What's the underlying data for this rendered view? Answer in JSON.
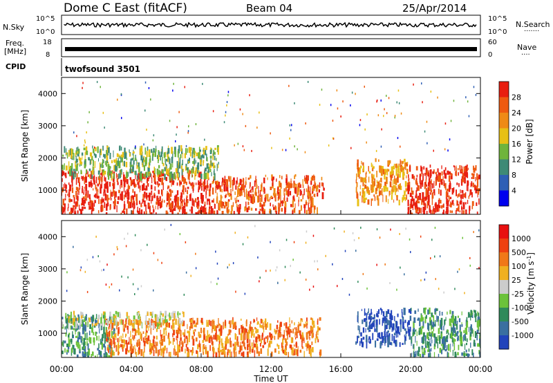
{
  "header": {
    "station": "Dome C East (fitACF)",
    "beam": "Beam 04",
    "date": "25/Apr/2014"
  },
  "noise_panel": {
    "left_label": "N.Sky",
    "left_ticks": [
      "10^5",
      "10^0"
    ],
    "right_label": "N.Search",
    "right_ticks": [
      "10^5",
      "10^0"
    ]
  },
  "freq_panel": {
    "left_label_1": "Freq.",
    "left_label_2": "[MHz]",
    "left_ticks": [
      "18",
      "8"
    ],
    "right_label": "Nave",
    "right_ticks": [
      "60",
      "0"
    ]
  },
  "cpid_panel": {
    "label": "CPID",
    "program": "twofsound 3501"
  },
  "chart_data": [
    {
      "type": "heatmap",
      "title": "",
      "ylabel": "Slant Range [km]",
      "ylim": [
        250,
        4500
      ],
      "yticks": [
        1000,
        2000,
        3000,
        4000
      ],
      "x_range_hours": [
        0,
        24
      ],
      "colorbar": {
        "label": "Power [dB]",
        "ticks": [
          "4",
          "8",
          "12",
          "16",
          "20",
          "24",
          "28"
        ],
        "colors": [
          "#0000ee",
          "#2e5fb5",
          "#3e8a76",
          "#6fb43c",
          "#e8c015",
          "#ef8a16",
          "#ee5a10",
          "#e81e10"
        ]
      },
      "echo_regions": [
        {
          "t0": 0.0,
          "t1": 8.6,
          "r0": 300,
          "r1": 1650,
          "level": 7
        },
        {
          "t0": 8.6,
          "t1": 15.0,
          "r0": 350,
          "r1": 1500,
          "level": 6
        },
        {
          "t0": 0.0,
          "t1": 9.0,
          "r0": 1500,
          "r1": 2400,
          "level": 3
        },
        {
          "t0": 16.8,
          "t1": 19.8,
          "r0": 700,
          "r1": 2000,
          "level": 5
        },
        {
          "t0": 19.8,
          "t1": 24.0,
          "r0": 300,
          "r1": 1800,
          "level": 7
        }
      ]
    },
    {
      "type": "heatmap",
      "title": "",
      "ylabel": "Slant Range [km]",
      "ylim": [
        250,
        4500
      ],
      "yticks": [
        1000,
        2000,
        3000,
        4000
      ],
      "x_range_hours": [
        0,
        24
      ],
      "xticks": [
        "00:00",
        "04:00",
        "08:00",
        "12:00",
        "16:00",
        "20:00",
        "00:00"
      ],
      "xlabel": "Time UT",
      "colorbar": {
        "label": "Velocity [m s^-1]",
        "ticks": [
          "1000",
          "500",
          "100",
          "25",
          "-25",
          "-100",
          "-500",
          "-1000"
        ],
        "colors": [
          "#2244bb",
          "#3a6fa0",
          "#2f8a5a",
          "#6cc23a",
          "#cccccc",
          "#f0b020",
          "#f07818",
          "#ee4010",
          "#e81010"
        ]
      },
      "echo_regions": [
        {
          "t0": 0.0,
          "t1": 3.0,
          "r0": 300,
          "r1": 1600,
          "level": 2
        },
        {
          "t0": 2.5,
          "t1": 14.8,
          "r0": 400,
          "r1": 1500,
          "level": 6
        },
        {
          "t0": 0.0,
          "t1": 7.0,
          "r0": 1300,
          "r1": 1700,
          "level": 4
        },
        {
          "t0": 16.8,
          "t1": 20.0,
          "r0": 700,
          "r1": 1800,
          "level": 0
        },
        {
          "t0": 20.0,
          "t1": 24.0,
          "r0": 350,
          "r1": 1800,
          "level": 2
        }
      ]
    }
  ]
}
